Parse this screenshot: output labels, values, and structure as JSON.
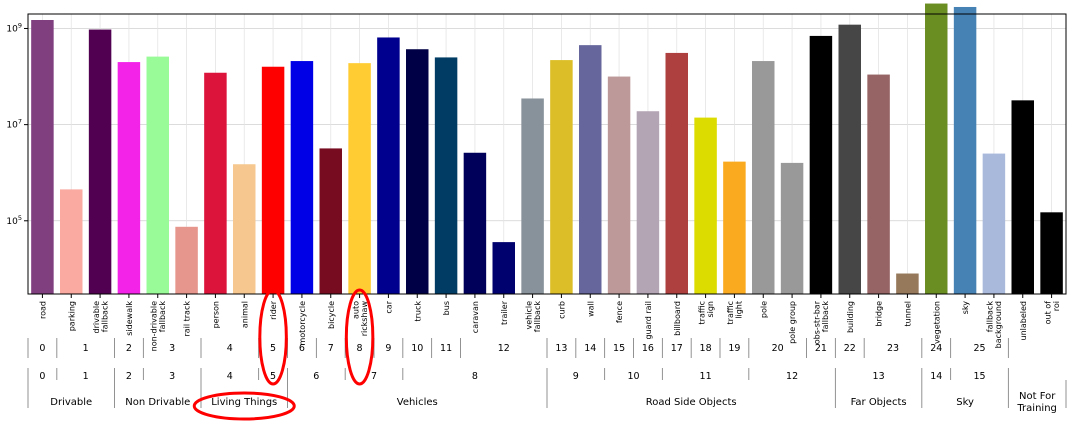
{
  "chart_data": {
    "type": "bar",
    "yscale": "log",
    "ylim": [
      3000,
      2000000000
    ],
    "y_ticks": [
      {
        "value": 100000,
        "base": "10",
        "exp": "5"
      },
      {
        "value": 10000000,
        "base": "10",
        "exp": "7"
      },
      {
        "value": 1000000000,
        "base": "10",
        "exp": "9"
      }
    ],
    "grid": true,
    "bars": [
      {
        "label": "road",
        "value": 1500000000,
        "color": "#804080",
        "l1": "0",
        "l2": "0"
      },
      {
        "label": "parking",
        "value": 450000,
        "color": "#FAAAA0",
        "l1": "1",
        "l2": "1"
      },
      {
        "label": "drivable\nfallback",
        "value": 950000000,
        "color": "#510051",
        "l1": "1",
        "l2": "1"
      },
      {
        "label": "sidewalk",
        "value": 200000000,
        "color": "#F423E8",
        "l1": "2",
        "l2": "2"
      },
      {
        "label": "non-drivable\nfallback",
        "value": 260000000,
        "color": "#98FB98",
        "l1": "3",
        "l2": "3"
      },
      {
        "label": "rail track",
        "value": 75000,
        "color": "#E6968C",
        "l1": "3",
        "l2": "3"
      },
      {
        "label": "person",
        "value": 120000000,
        "color": "#DC143C",
        "l1": "4",
        "l2": "4"
      },
      {
        "label": "animal",
        "value": 1500000,
        "color": "#F6C78E",
        "l1": "4",
        "l2": "4"
      },
      {
        "label": "rider",
        "value": 160000000,
        "color": "#FF0000",
        "l1": "5",
        "l2": "5"
      },
      {
        "label": "motorcycle",
        "value": 210000000,
        "color": "#0000E6",
        "l1": "6",
        "l2": "6"
      },
      {
        "label": "bicycle",
        "value": 3200000,
        "color": "#770B20",
        "l1": "7",
        "l2": "6"
      },
      {
        "label": "auto\nrickshaw",
        "value": 190000000,
        "color": "#FFCC33",
        "l1": "8",
        "l2": "7"
      },
      {
        "label": "car",
        "value": 650000000,
        "color": "#00008E",
        "l1": "9",
        "l2": "7"
      },
      {
        "label": "truck",
        "value": 370000000,
        "color": "#000046",
        "l1": "10",
        "l2": "8"
      },
      {
        "label": "bus",
        "value": 250000000,
        "color": "#003C64",
        "l1": "11",
        "l2": "8"
      },
      {
        "label": "caravan",
        "value": 2600000,
        "color": "#00005A",
        "l1": "12",
        "l2": "8"
      },
      {
        "label": "trailer",
        "value": 36000,
        "color": "#00006E",
        "l1": "12",
        "l2": "8"
      },
      {
        "label": "vehicle\nfallback",
        "value": 35000000,
        "color": "#88929A",
        "l1": "12",
        "l2": "8"
      },
      {
        "label": "curb",
        "value": 220000000,
        "color": "#DCBE28",
        "l1": "13",
        "l2": "9"
      },
      {
        "label": "wall",
        "value": 450000000,
        "color": "#66669C",
        "l1": "14",
        "l2": "9"
      },
      {
        "label": "fence",
        "value": 100000000,
        "color": "#BE9999",
        "l1": "15",
        "l2": "10"
      },
      {
        "label": "guard rail",
        "value": 19000000,
        "color": "#B4A5B4",
        "l1": "16",
        "l2": "10"
      },
      {
        "label": "billboard",
        "value": 310000000,
        "color": "#AE4040",
        "l1": "17",
        "l2": "11"
      },
      {
        "label": "traffic\nsign",
        "value": 14000000,
        "color": "#DCDC00",
        "l1": "18",
        "l2": "11"
      },
      {
        "label": "traffic\nlight",
        "value": 1700000,
        "color": "#FAAA1E",
        "l1": "19",
        "l2": "11"
      },
      {
        "label": "pole",
        "value": 210000000,
        "color": "#999999",
        "l1": "20",
        "l2": "12"
      },
      {
        "label": "pole group",
        "value": 1600000,
        "color": "#999999",
        "l1": "20",
        "l2": "12"
      },
      {
        "label": "obs-str-bar\nfallback",
        "value": 700000000,
        "color": "#000000",
        "l1": "21",
        "l2": "12"
      },
      {
        "label": "building",
        "value": 1200000000,
        "color": "#464646",
        "l1": "22",
        "l2": "13"
      },
      {
        "label": "bridge",
        "value": 110000000,
        "color": "#966464",
        "l1": "23",
        "l2": "13"
      },
      {
        "label": "tunnel",
        "value": 8000,
        "color": "#96785A",
        "l1": "23",
        "l2": "13"
      },
      {
        "label": "vegetation",
        "value": 3300000000,
        "color": "#6B8E23",
        "l1": "24",
        "l2": "14"
      },
      {
        "label": "sky",
        "value": 2800000000,
        "color": "#4682B4",
        "l1": "25",
        "l2": "15"
      },
      {
        "label": "fallback\nbackground",
        "value": 2500000,
        "color": "#A9B9DB",
        "l1": "25",
        "l2": "15"
      },
      {
        "label": "unlabeled",
        "value": 32000000,
        "color": "#000000",
        "l1": "",
        "l2": ""
      },
      {
        "label": "out of\nroi",
        "value": 150000,
        "color": "#000000",
        "l1": "",
        "l2": ""
      }
    ],
    "level1_groups": [
      {
        "label": "0",
        "start": 0,
        "end": 0
      },
      {
        "label": "1",
        "start": 1,
        "end": 2
      },
      {
        "label": "2",
        "start": 3,
        "end": 3
      },
      {
        "label": "3",
        "start": 4,
        "end": 5
      },
      {
        "label": "4",
        "start": 6,
        "end": 7
      },
      {
        "label": "5",
        "start": 8,
        "end": 8
      },
      {
        "label": "6",
        "start": 9,
        "end": 9
      },
      {
        "label": "7",
        "start": 10,
        "end": 10
      },
      {
        "label": "8",
        "start": 11,
        "end": 11
      },
      {
        "label": "9",
        "start": 12,
        "end": 12
      },
      {
        "label": "10",
        "start": 13,
        "end": 13
      },
      {
        "label": "11",
        "start": 14,
        "end": 14
      },
      {
        "label": "12",
        "start": 15,
        "end": 17
      },
      {
        "label": "13",
        "start": 18,
        "end": 18
      },
      {
        "label": "14",
        "start": 19,
        "end": 19
      },
      {
        "label": "15",
        "start": 20,
        "end": 20
      },
      {
        "label": "16",
        "start": 21,
        "end": 21
      },
      {
        "label": "17",
        "start": 22,
        "end": 22
      },
      {
        "label": "18",
        "start": 23,
        "end": 23
      },
      {
        "label": "19",
        "start": 24,
        "end": 24
      },
      {
        "label": "20",
        "start": 25,
        "end": 26
      },
      {
        "label": "21",
        "start": 27,
        "end": 27
      },
      {
        "label": "22",
        "start": 28,
        "end": 28
      },
      {
        "label": "23",
        "start": 29,
        "end": 30
      },
      {
        "label": "24",
        "start": 31,
        "end": 31
      },
      {
        "label": "25",
        "start": 32,
        "end": 33
      }
    ],
    "level2_groups": [
      {
        "label": "0",
        "start": 0,
        "end": 0
      },
      {
        "label": "1",
        "start": 1,
        "end": 2
      },
      {
        "label": "2",
        "start": 3,
        "end": 3
      },
      {
        "label": "3",
        "start": 4,
        "end": 5
      },
      {
        "label": "4",
        "start": 6,
        "end": 7
      },
      {
        "label": "5",
        "start": 8,
        "end": 8
      },
      {
        "label": "6",
        "start": 9,
        "end": 10
      },
      {
        "label": "7",
        "start": 11,
        "end": 12
      },
      {
        "label": "8",
        "start": 13,
        "end": 17
      },
      {
        "label": "9",
        "start": 18,
        "end": 19
      },
      {
        "label": "10",
        "start": 20,
        "end": 21
      },
      {
        "label": "11",
        "start": 22,
        "end": 24
      },
      {
        "label": "12",
        "start": 25,
        "end": 27
      },
      {
        "label": "13",
        "start": 28,
        "end": 30
      },
      {
        "label": "14",
        "start": 31,
        "end": 31
      },
      {
        "label": "15",
        "start": 32,
        "end": 33
      }
    ],
    "level3_groups": [
      {
        "label": "Drivable",
        "start": 0,
        "end": 2
      },
      {
        "label": "Non Drivable",
        "start": 3,
        "end": 5
      },
      {
        "label": "Living Things",
        "start": 6,
        "end": 8
      },
      {
        "label": "Vehicles",
        "start": 9,
        "end": 17
      },
      {
        "label": "Road Side Objects",
        "start": 18,
        "end": 27
      },
      {
        "label": "Far Objects",
        "start": 28,
        "end": 30
      },
      {
        "label": "Sky",
        "start": 31,
        "end": 33
      },
      {
        "label": "Not For\nTraining",
        "start": 34,
        "end": 35
      }
    ],
    "annotations": [
      {
        "type": "circle",
        "target": "rider",
        "color": "#FF0000"
      },
      {
        "type": "circle",
        "target": "auto\nrickshaw",
        "color": "#FF0000"
      },
      {
        "type": "circle",
        "target": "Living Things",
        "color": "#FF0000"
      }
    ]
  }
}
